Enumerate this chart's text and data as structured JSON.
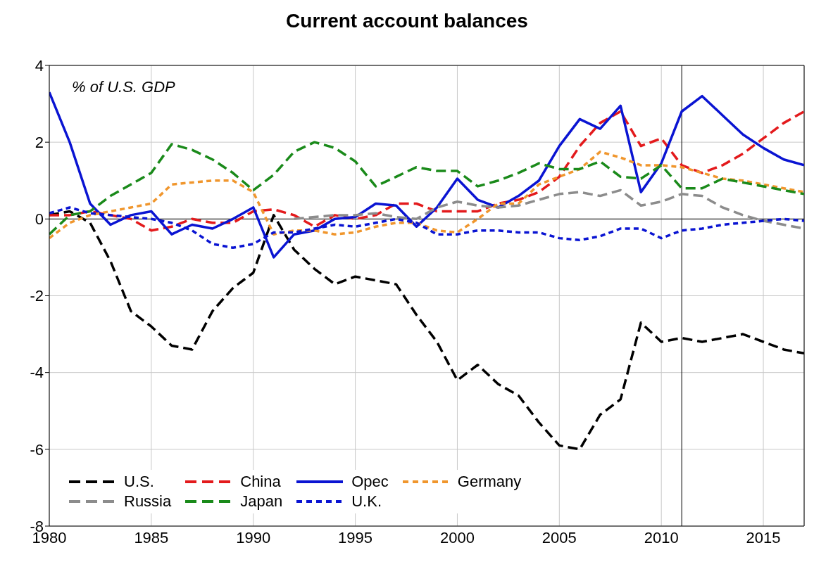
{
  "chart_data": {
    "type": "line",
    "title": "Current account balances",
    "ylabel": "% of U.S. GDP",
    "x": [
      1980,
      1981,
      1982,
      1983,
      1984,
      1985,
      1986,
      1987,
      1988,
      1989,
      1990,
      1991,
      1992,
      1993,
      1994,
      1995,
      1996,
      1997,
      1998,
      1999,
      2000,
      2001,
      2002,
      2003,
      2004,
      2005,
      2006,
      2007,
      2008,
      2009,
      2010,
      2011,
      2012,
      2013,
      2014,
      2015,
      2016,
      2017
    ],
    "series": [
      {
        "name": "U.S.",
        "color": "#000000",
        "line_style": "dashed",
        "values": [
          0.1,
          0.2,
          -0.1,
          -1.1,
          -2.4,
          -2.8,
          -3.3,
          -3.4,
          -2.4,
          -1.8,
          -1.4,
          0.1,
          -0.8,
          -1.3,
          -1.7,
          -1.5,
          -1.6,
          -1.7,
          -2.5,
          -3.2,
          -4.2,
          -3.8,
          -4.3,
          -4.6,
          -5.3,
          -5.9,
          -6.0,
          -5.1,
          -4.7,
          -2.7,
          -3.2,
          -3.1,
          -3.2,
          -3.1,
          -3.0,
          -3.2,
          -3.4,
          -3.5
        ]
      },
      {
        "name": "China",
        "color": "#e31a1c",
        "line_style": "dashed",
        "values": [
          0.1,
          0.1,
          0.2,
          0.1,
          0.0,
          -0.3,
          -0.2,
          0.0,
          -0.1,
          -0.1,
          0.2,
          0.25,
          0.1,
          -0.2,
          0.1,
          0.0,
          0.1,
          0.4,
          0.4,
          0.2,
          0.2,
          0.2,
          0.4,
          0.5,
          0.7,
          1.1,
          1.9,
          2.5,
          2.8,
          1.9,
          2.1,
          1.4,
          1.2,
          1.4,
          1.7,
          2.1,
          2.5,
          2.8
        ]
      },
      {
        "name": "Opec",
        "color": "#0a14d2",
        "line_style": "solid",
        "values": [
          3.3,
          2.0,
          0.4,
          -0.15,
          0.1,
          0.2,
          -0.4,
          -0.15,
          -0.25,
          0.0,
          0.3,
          -1.0,
          -0.4,
          -0.3,
          0.0,
          0.05,
          0.4,
          0.35,
          -0.2,
          0.3,
          1.05,
          0.5,
          0.3,
          0.6,
          1.0,
          1.9,
          2.6,
          2.35,
          2.95,
          0.7,
          1.45,
          2.8,
          3.2,
          2.7,
          2.2,
          1.85,
          1.55,
          1.4
        ]
      },
      {
        "name": "Germany",
        "color": "#f0962d",
        "line_style": "dotted",
        "values": [
          -0.5,
          -0.1,
          0.1,
          0.2,
          0.3,
          0.4,
          0.9,
          0.95,
          1.0,
          1.0,
          0.7,
          -0.4,
          -0.3,
          -0.3,
          -0.4,
          -0.35,
          -0.2,
          -0.1,
          -0.1,
          -0.3,
          -0.35,
          0.0,
          0.4,
          0.4,
          0.9,
          1.1,
          1.3,
          1.75,
          1.6,
          1.4,
          1.4,
          1.35,
          1.2,
          1.05,
          1.0,
          0.9,
          0.8,
          0.7
        ]
      },
      {
        "name": "Russia",
        "color": "#8c8c8c",
        "line_style": "dashed",
        "values": [
          null,
          null,
          null,
          null,
          null,
          null,
          null,
          null,
          null,
          null,
          null,
          null,
          0.0,
          0.05,
          0.1,
          0.1,
          0.15,
          0.05,
          0.0,
          0.3,
          0.45,
          0.35,
          0.3,
          0.35,
          0.5,
          0.65,
          0.7,
          0.6,
          0.75,
          0.35,
          0.45,
          0.65,
          0.6,
          0.3,
          0.1,
          -0.05,
          -0.15,
          -0.25
        ]
      },
      {
        "name": "Japan",
        "color": "#1a8a1a",
        "line_style": "dashed",
        "values": [
          -0.4,
          0.1,
          0.2,
          0.6,
          0.9,
          1.2,
          1.95,
          1.8,
          1.55,
          1.2,
          0.75,
          1.15,
          1.75,
          2.0,
          1.85,
          1.5,
          0.85,
          1.1,
          1.35,
          1.25,
          1.25,
          0.85,
          1.0,
          1.2,
          1.45,
          1.3,
          1.3,
          1.5,
          1.1,
          1.05,
          1.4,
          0.8,
          0.8,
          1.05,
          0.95,
          0.85,
          0.75,
          0.65
        ]
      },
      {
        "name": "U.K.",
        "color": "#0a14d2",
        "line_style": "dotted",
        "values": [
          0.15,
          0.3,
          0.15,
          0.1,
          0.05,
          0.0,
          -0.1,
          -0.3,
          -0.65,
          -0.75,
          -0.65,
          -0.35,
          -0.35,
          -0.25,
          -0.15,
          -0.2,
          -0.1,
          0.0,
          -0.1,
          -0.4,
          -0.4,
          -0.3,
          -0.3,
          -0.35,
          -0.35,
          -0.5,
          -0.55,
          -0.45,
          -0.25,
          -0.25,
          -0.5,
          -0.3,
          -0.25,
          -0.15,
          -0.1,
          -0.05,
          0.0,
          -0.05
        ]
      }
    ],
    "xlim": [
      1980,
      2017
    ],
    "xticks": [
      1980,
      1985,
      1990,
      1995,
      2000,
      2005,
      2010,
      2015
    ],
    "ylim": [
      -8,
      4
    ],
    "yticks": [
      -8,
      -6,
      -4,
      -2,
      0,
      2,
      4
    ],
    "ref_lines": [
      {
        "axis": "x",
        "value": 2011,
        "color": "#000000"
      },
      {
        "axis": "y",
        "value": 0,
        "color": "#000000"
      }
    ],
    "grid": true,
    "legend": "bottom left"
  }
}
